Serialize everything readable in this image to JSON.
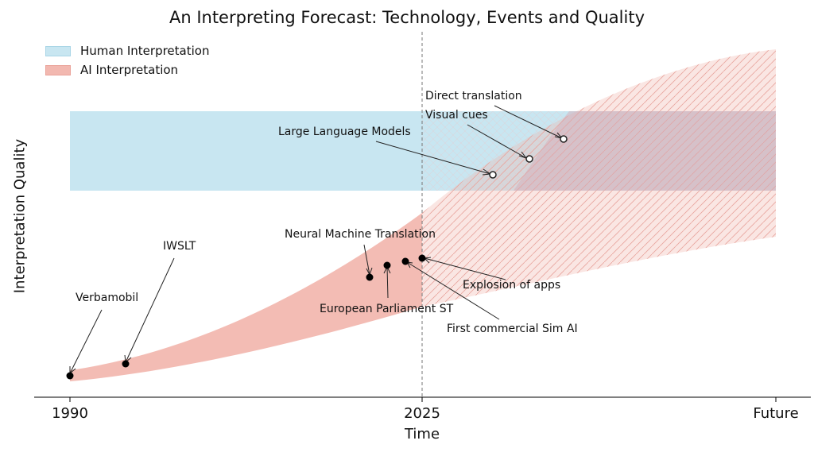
{
  "chart_data": {
    "type": "area",
    "title": "An Interpreting Forecast: Technology, Events and Quality",
    "xlabel": "Time",
    "ylabel": "Interpretation Quality",
    "x_ticks": [
      "1990",
      "2025",
      "Future"
    ],
    "y_ticks": [],
    "legend_position": "top-left",
    "vertical_reference_line": "2025",
    "series": [
      {
        "name": "Human Interpretation",
        "color": "#c8e6f1",
        "style": "constant band",
        "band_low": 0.62,
        "band_high": 0.87
      },
      {
        "name": "AI Interpretation",
        "color": "#f2b8b0",
        "style": "growth band (hatched after 2025)"
      }
    ],
    "annotations": [
      {
        "label": "Verbamobil",
        "x": 1990,
        "marker": "filled"
      },
      {
        "label": "IWSLT",
        "x": 1995.5,
        "marker": "filled"
      },
      {
        "label": "Neural Machine Translation",
        "x": 2019.7,
        "marker": "filled"
      },
      {
        "label": "European Parliament ST",
        "x": 2021.5,
        "marker": "filled"
      },
      {
        "label": "First commercial Sim AI",
        "x": 2023.3,
        "marker": "filled"
      },
      {
        "label": "Explosion of apps",
        "x": 2025,
        "marker": "filled"
      },
      {
        "label": "Large Language Models",
        "x": "future",
        "marker": "open"
      },
      {
        "label": "Visual cues",
        "x": "future",
        "marker": "open"
      },
      {
        "label": "Direct translation",
        "x": "future",
        "marker": "open"
      }
    ]
  }
}
